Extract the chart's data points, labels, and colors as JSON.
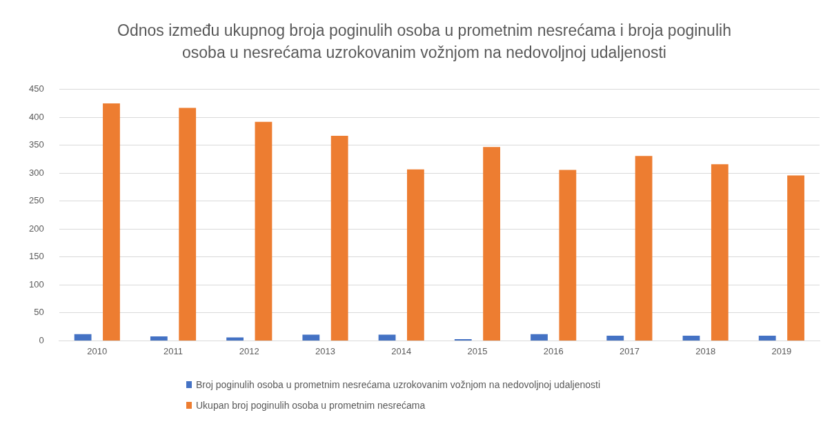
{
  "chart_data": {
    "type": "bar",
    "title": "Odnos između ukupnog broja poginulih osoba u prometnim nesrećama i broja poginulih osoba u nesrećama uzrokovanim vožnjom na nedovoljnoj udaljenosti",
    "categories": [
      "2010",
      "2011",
      "2012",
      "2013",
      "2014",
      "2015",
      "2016",
      "2017",
      "2018",
      "2019"
    ],
    "series": [
      {
        "name": "Broj poginulih osoba u prometnim nesrećama uzrokovanim vožnjom na nedovoljnoj udaljenosti",
        "color": "#4472c4",
        "values": [
          12,
          8,
          6,
          11,
          11,
          3,
          12,
          9,
          9,
          9
        ]
      },
      {
        "name": "Ukupan broj poginulih osoba u prometnim nesrećama",
        "color": "#ed7d31",
        "values": [
          425,
          417,
          392,
          367,
          307,
          347,
          306,
          331,
          316,
          296
        ]
      }
    ],
    "ylim": [
      0,
      450
    ],
    "yticks": [
      0,
      50,
      100,
      150,
      200,
      250,
      300,
      350,
      400,
      450
    ],
    "grid": "y",
    "legend": "bottom"
  }
}
